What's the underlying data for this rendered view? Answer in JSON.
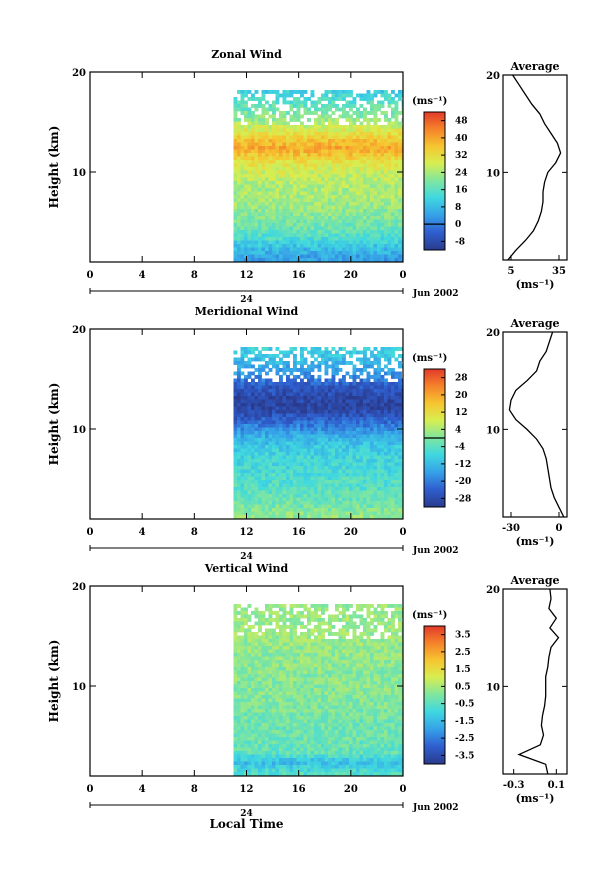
{
  "chart_data": [
    {
      "type": "heatmap",
      "title": "Zonal Wind",
      "ylabel": "Height (km)",
      "ytick_labels": [
        "10",
        "20"
      ],
      "xtick_labels": [
        "0",
        "4",
        "8",
        "12",
        "16",
        "20",
        "0"
      ],
      "date_labels": [
        "24",
        "Jun 2002"
      ],
      "xlim": [
        0,
        24
      ],
      "ylim": [
        1,
        20
      ],
      "data_start_hour": 11,
      "colorbar": {
        "unit": "(ms⁻¹)",
        "ticks": [
          "-8",
          "0",
          "8",
          "16",
          "24",
          "32",
          "40",
          "48"
        ],
        "range": [
          -12,
          52
        ],
        "contour_level": "0"
      },
      "profile": {
        "title": "Average",
        "xtick_labels": [
          "5",
          "35"
        ],
        "xlabel": "(ms⁻¹)",
        "xlim": [
          0,
          40
        ],
        "ytick_labels": [
          "10",
          "20"
        ],
        "heights": [
          1,
          2,
          3,
          4,
          5,
          6,
          7,
          8,
          9,
          10,
          11,
          12,
          13,
          14,
          15,
          16,
          17,
          18,
          19,
          20
        ],
        "values": [
          3,
          8,
          14,
          19,
          22,
          24,
          25,
          25,
          26,
          28,
          33,
          36,
          34,
          30,
          26,
          23,
          18,
          14,
          10,
          6
        ]
      },
      "field": {
        "heights": [
          1.5,
          2.5,
          3.5,
          4.5,
          5.5,
          6.5,
          7.5,
          8.5,
          9.5,
          10.5,
          11.5,
          12.5,
          13.5,
          14.5,
          15.5,
          16.5,
          17.5,
          18.5,
          19.5
        ],
        "mean_values": [
          4,
          8,
          14,
          18,
          20,
          22,
          24,
          24,
          26,
          28,
          33,
          40,
          35,
          28,
          22,
          18,
          14,
          10,
          6
        ]
      }
    },
    {
      "type": "heatmap",
      "title": "Meridional Wind",
      "ylabel": "Height (km)",
      "ytick_labels": [
        "10",
        "20"
      ],
      "xtick_labels": [
        "0",
        "4",
        "8",
        "12",
        "16",
        "20",
        "0"
      ],
      "date_labels": [
        "24",
        "Jun 2002"
      ],
      "xlim": [
        0,
        24
      ],
      "ylim": [
        1,
        20
      ],
      "data_start_hour": 11,
      "colorbar": {
        "unit": "(ms⁻¹)",
        "ticks": [
          "-28",
          "-20",
          "-12",
          "-4",
          "4",
          "12",
          "20",
          "28"
        ],
        "range": [
          -32,
          32
        ],
        "contour_level": "0"
      },
      "profile": {
        "title": "Average",
        "xtick_labels": [
          "-30",
          "0"
        ],
        "xlabel": "(ms⁻¹)",
        "xlim": [
          -35,
          5
        ],
        "ytick_labels": [
          "10",
          "20"
        ],
        "heights": [
          1,
          2,
          3,
          4,
          5,
          6,
          7,
          8,
          9,
          10,
          11,
          12,
          13,
          14,
          15,
          16,
          17,
          18,
          19,
          20
        ],
        "values": [
          3,
          0,
          -3,
          -5,
          -6,
          -7,
          -8,
          -10,
          -14,
          -20,
          -27,
          -31,
          -30,
          -27,
          -20,
          -14,
          -12,
          -8,
          -6,
          -4
        ]
      },
      "field": {
        "heights": [
          1.5,
          2.5,
          3.5,
          4.5,
          5.5,
          6.5,
          7.5,
          8.5,
          9.5,
          10.5,
          11.5,
          12.5,
          13.5,
          14.5,
          15.5,
          16.5,
          17.5,
          18.5,
          19.5
        ],
        "mean_values": [
          2,
          -1,
          -3,
          -5,
          -6,
          -7,
          -8,
          -10,
          -14,
          -20,
          -26,
          -30,
          -28,
          -25,
          -18,
          -14,
          -10,
          -8,
          -5
        ]
      }
    },
    {
      "type": "heatmap",
      "title": "Vertical Wind",
      "ylabel": "Height (km)",
      "ytick_labels": [
        "10",
        "20"
      ],
      "xtick_labels": [
        "0",
        "4",
        "8",
        "12",
        "16",
        "20",
        "0"
      ],
      "date_labels": [
        "24",
        "Jun 2002"
      ],
      "xlabel": "Local Time",
      "xlim": [
        0,
        24
      ],
      "ylim": [
        1,
        20
      ],
      "data_start_hour": 11,
      "colorbar": {
        "unit": "(ms⁻¹)",
        "ticks": [
          "-3.5",
          "-2.5",
          "-1.5",
          "-0.5",
          "0.5",
          "1.5",
          "2.5",
          "3.5"
        ],
        "range": [
          -4,
          4
        ]
      },
      "profile": {
        "title": "Average",
        "xtick_labels": [
          "-0.3",
          "0.1"
        ],
        "xlabel": "(ms⁻¹)",
        "xlim": [
          -0.4,
          0.2
        ],
        "ytick_labels": [
          "10",
          "20"
        ],
        "heights": [
          1,
          2,
          3,
          4,
          5,
          6,
          7,
          8,
          9,
          10,
          11,
          12,
          13,
          14,
          15,
          16,
          17,
          18,
          19,
          20
        ],
        "values": [
          0.02,
          0.0,
          -0.25,
          -0.05,
          -0.02,
          -0.04,
          -0.03,
          -0.01,
          0.0,
          0.0,
          0.0,
          0.02,
          0.03,
          0.05,
          0.12,
          0.04,
          0.1,
          0.03,
          0.05,
          0.04
        ]
      },
      "field": {
        "heights": [
          1.5,
          2.5,
          3.5,
          4.5,
          5.5,
          6.5,
          7.5,
          8.5,
          9.5,
          10.5,
          11.5,
          12.5,
          13.5,
          14.5,
          15.5,
          16.5,
          17.5,
          18.5,
          19.5
        ],
        "mean_values": [
          -0.6,
          -1.5,
          -0.4,
          -0.3,
          -0.2,
          -0.2,
          -0.1,
          0.0,
          0.1,
          0.1,
          0.1,
          0.2,
          0.2,
          0.3,
          0.4,
          0.3,
          0.3,
          0.2,
          0.2
        ]
      }
    }
  ]
}
